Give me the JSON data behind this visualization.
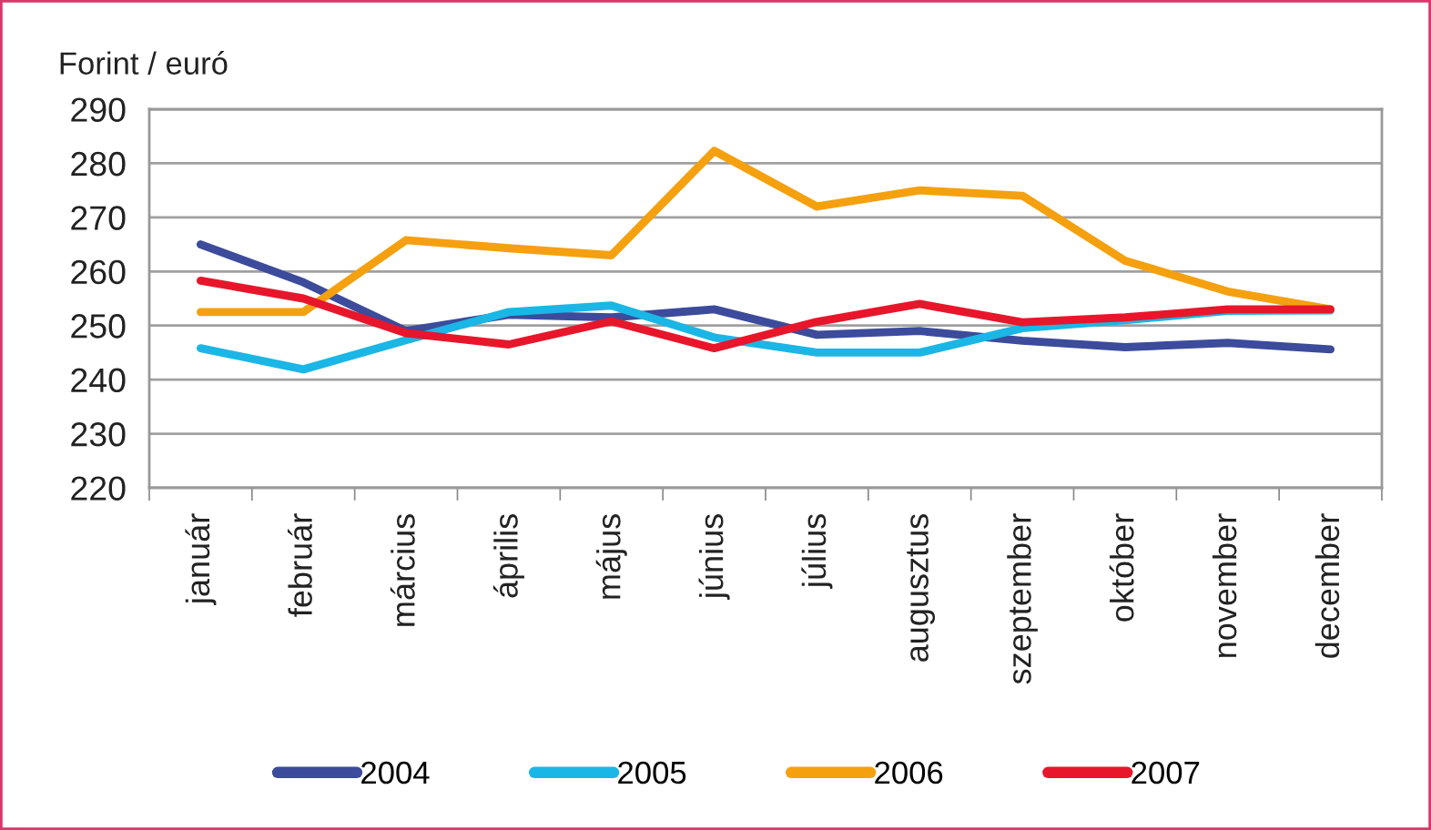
{
  "chart_data": {
    "type": "line",
    "ylabel": "Forint / euró",
    "categories": [
      "január",
      "február",
      "március",
      "április",
      "május",
      "június",
      "július",
      "augusztus",
      "szeptember",
      "október",
      "november",
      "december"
    ],
    "series": [
      {
        "name": "2004",
        "color": "#3c4b9b",
        "values": [
          265,
          258,
          249,
          252,
          251.5,
          253,
          248.3,
          249,
          247.2,
          246,
          246.8,
          245.6
        ]
      },
      {
        "name": "2005",
        "color": "#1ab6e6",
        "values": [
          245.8,
          241.9,
          247.3,
          252.5,
          253.7,
          247.8,
          245,
          245,
          249.5,
          251,
          252.7,
          252.8
        ]
      },
      {
        "name": "2006",
        "color": "#f5a00f",
        "values": [
          252.5,
          252.5,
          265.8,
          264.3,
          263,
          282.3,
          272,
          275,
          274,
          262,
          256.3,
          253
        ]
      },
      {
        "name": "2007",
        "color": "#e8162b",
        "values": [
          258.3,
          255,
          248.6,
          246.5,
          250.8,
          245.8,
          250.7,
          254,
          250.6,
          251.5,
          253,
          253
        ]
      }
    ],
    "ylim": [
      220,
      290
    ],
    "yticks": [
      220,
      230,
      240,
      250,
      260,
      270,
      280,
      290
    ],
    "grid": "y",
    "legend": "bottom",
    "marker": "none",
    "line_style": "solid"
  }
}
